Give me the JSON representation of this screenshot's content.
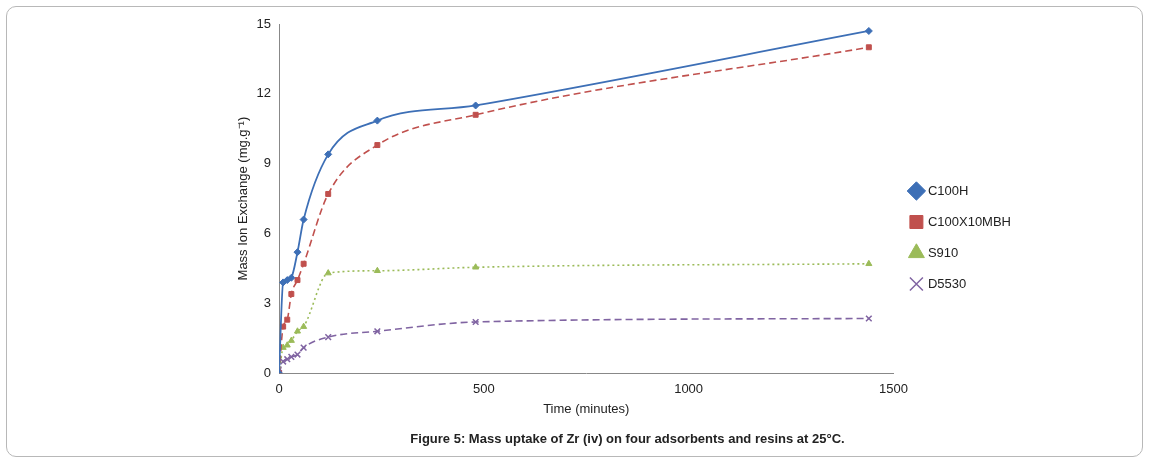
{
  "chart_data": {
    "type": "line",
    "title": "Figure 5: Mass uptake of Zr (iv) on four adsorbents and resins at 25°C.",
    "x_label": "Time (minutes)",
    "y_label": "Mass Ion Exchange (mg.g⁻¹)",
    "x": [
      0,
      10,
      20,
      30,
      45,
      60,
      120,
      240,
      480,
      1440
    ],
    "series": [
      {
        "name": "C100H",
        "color": "#3d6fb6",
        "marker": "diamond",
        "line_style": "solid",
        "values": [
          0,
          3.9,
          4.0,
          4.1,
          5.2,
          6.6,
          9.4,
          10.85,
          11.5,
          14.7
        ]
      },
      {
        "name": "C100X10MBH",
        "color": "#c0504d",
        "marker": "square",
        "line_style": "dashed",
        "values": [
          0,
          2.0,
          2.3,
          3.4,
          4.0,
          4.7,
          7.7,
          9.8,
          11.1,
          14.0
        ]
      },
      {
        "name": "S910",
        "color": "#9bbb59",
        "marker": "triangle",
        "line_style": "dotted",
        "values": [
          0,
          1.1,
          1.2,
          1.4,
          1.8,
          2.0,
          4.3,
          4.4,
          4.55,
          4.7
        ]
      },
      {
        "name": "D5530",
        "color": "#8064a2",
        "marker": "x",
        "line_style": "dashed",
        "values": [
          0,
          0.5,
          0.6,
          0.7,
          0.8,
          1.1,
          1.55,
          1.8,
          2.2,
          2.35
        ]
      }
    ],
    "xlim": [
      0,
      1500
    ],
    "xticks": [
      0,
      500,
      1000,
      1500
    ],
    "ylim": [
      0,
      15
    ],
    "yticks": [
      0,
      3,
      6,
      9,
      12,
      15
    ],
    "grid": false,
    "legend": "right"
  }
}
